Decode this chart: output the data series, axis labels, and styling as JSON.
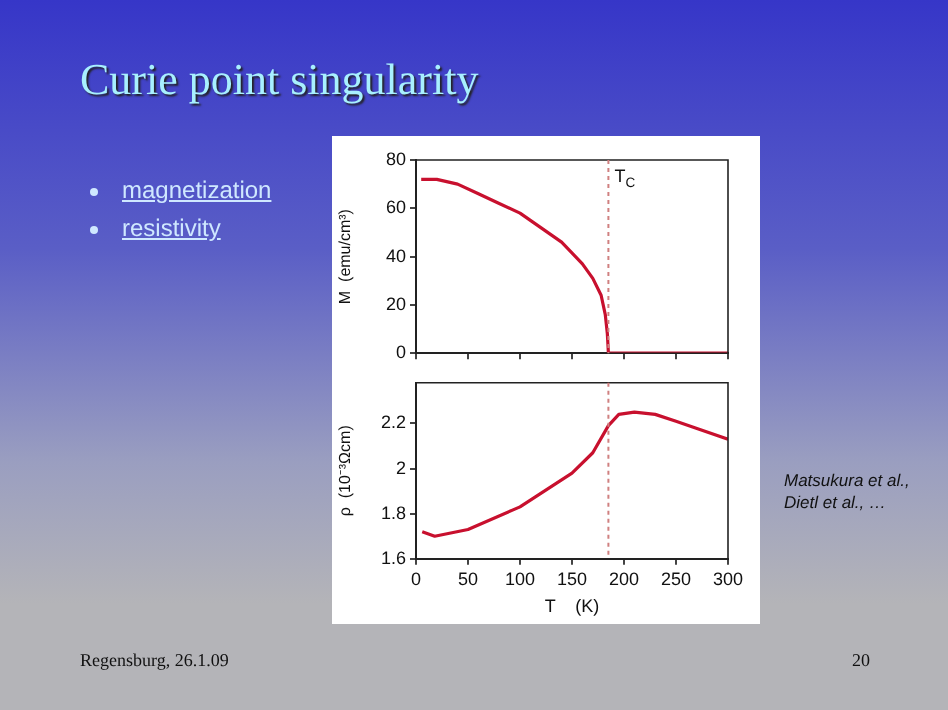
{
  "chart_data": [
    {
      "type": "line",
      "title": "Curie point singularity",
      "ylabel": "M  (emu/cm³)",
      "x": [
        5,
        20,
        40,
        60,
        80,
        100,
        120,
        140,
        160,
        170,
        178,
        182,
        184,
        185,
        200,
        250,
        300
      ],
      "series": [
        {
          "color": "#c8102e",
          "values": [
            72,
            72,
            70,
            66,
            62,
            58,
            52,
            46,
            37,
            31,
            24,
            16,
            8,
            0,
            0,
            0,
            0
          ]
        }
      ],
      "xlim": [
        0,
        300
      ],
      "xticks": [
        0,
        50,
        100,
        150,
        200,
        250,
        300
      ],
      "ylim": [
        0,
        80
      ],
      "yticks": [
        0,
        20,
        40,
        60,
        80
      ],
      "tick_labels": "y",
      "grid": false,
      "legend": false,
      "marker": "none",
      "line_style": "solid",
      "ref_lines": [
        {
          "axis": "x",
          "value": 185,
          "label": "T$_{C}$",
          "color": "#d08080",
          "line_style": "dotted"
        }
      ],
      "annotations": [
        "magnetization",
        "resistivity",
        "Matsukura et al.,\nDietl et al., …",
        "Regensburg, 26.1.09",
        "20"
      ]
    },
    {
      "type": "line",
      "xlabel": "T    (K)",
      "ylabel": "ρ  (10⁻³Ωcm)",
      "x": [
        6,
        18,
        50,
        100,
        150,
        170,
        185,
        195,
        210,
        230,
        250,
        275,
        300
      ],
      "series": [
        {
          "color": "#c8102e",
          "values": [
            1.72,
            1.7,
            1.73,
            1.83,
            1.98,
            2.07,
            2.19,
            2.24,
            2.25,
            2.24,
            2.21,
            2.17,
            2.13
          ]
        }
      ],
      "xlim": [
        0,
        300
      ],
      "xticks": [
        0,
        50,
        100,
        150,
        200,
        250,
        300
      ],
      "ylim": [
        1.6,
        2.38
      ],
      "yticks": [
        1.6,
        1.8,
        2,
        2.2
      ],
      "grid": false,
      "legend": false,
      "marker": "none",
      "line_style": "solid",
      "ref_lines": [
        {
          "axis": "x",
          "value": 185,
          "color": "#d08080",
          "line_style": "dotted"
        }
      ]
    }
  ]
}
